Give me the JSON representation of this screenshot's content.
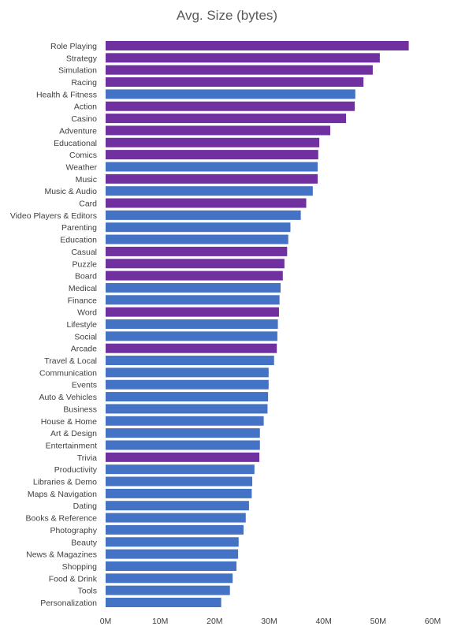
{
  "chart_data": {
    "type": "bar",
    "orientation": "horizontal",
    "title": "Avg. Size (bytes)",
    "xlabel": "",
    "ylabel": "",
    "xlim": [
      0,
      60000000
    ],
    "x_ticks": [
      "0M",
      "10M",
      "20M",
      "30M",
      "40M",
      "50M",
      "60M"
    ],
    "grid": false,
    "legend": "none",
    "colors": {
      "games": "#7030a0",
      "apps": "#4472c4"
    },
    "bars": [
      {
        "category": "Role Playing",
        "value": 55600000,
        "group": "games"
      },
      {
        "category": "Strategy",
        "value": 50300000,
        "group": "games"
      },
      {
        "category": "Simulation",
        "value": 49000000,
        "group": "games"
      },
      {
        "category": "Racing",
        "value": 47300000,
        "group": "games"
      },
      {
        "category": "Health & Fitness",
        "value": 45800000,
        "group": "apps"
      },
      {
        "category": "Action",
        "value": 45700000,
        "group": "games"
      },
      {
        "category": "Casino",
        "value": 44100000,
        "group": "games"
      },
      {
        "category": "Adventure",
        "value": 41200000,
        "group": "games"
      },
      {
        "category": "Educational",
        "value": 39200000,
        "group": "games"
      },
      {
        "category": "Comics",
        "value": 39000000,
        "group": "games"
      },
      {
        "category": "Weather",
        "value": 38900000,
        "group": "apps"
      },
      {
        "category": "Music",
        "value": 38900000,
        "group": "games"
      },
      {
        "category": "Music & Audio",
        "value": 38000000,
        "group": "apps"
      },
      {
        "category": "Card",
        "value": 36800000,
        "group": "games"
      },
      {
        "category": "Video Players & Editors",
        "value": 35800000,
        "group": "apps"
      },
      {
        "category": "Parenting",
        "value": 33900000,
        "group": "apps"
      },
      {
        "category": "Education",
        "value": 33500000,
        "group": "apps"
      },
      {
        "category": "Casual",
        "value": 33300000,
        "group": "games"
      },
      {
        "category": "Puzzle",
        "value": 32800000,
        "group": "games"
      },
      {
        "category": "Board",
        "value": 32500000,
        "group": "games"
      },
      {
        "category": "Medical",
        "value": 32100000,
        "group": "apps"
      },
      {
        "category": "Finance",
        "value": 31900000,
        "group": "apps"
      },
      {
        "category": "Word",
        "value": 31800000,
        "group": "games"
      },
      {
        "category": "Lifestyle",
        "value": 31600000,
        "group": "apps"
      },
      {
        "category": "Social",
        "value": 31500000,
        "group": "apps"
      },
      {
        "category": "Arcade",
        "value": 31400000,
        "group": "games"
      },
      {
        "category": "Travel & Local",
        "value": 30900000,
        "group": "apps"
      },
      {
        "category": "Communication",
        "value": 29900000,
        "group": "apps"
      },
      {
        "category": "Events",
        "value": 29900000,
        "group": "apps"
      },
      {
        "category": "Auto & Vehicles",
        "value": 29800000,
        "group": "apps"
      },
      {
        "category": "Business",
        "value": 29700000,
        "group": "apps"
      },
      {
        "category": "House & Home",
        "value": 29000000,
        "group": "apps"
      },
      {
        "category": "Art & Design",
        "value": 28300000,
        "group": "apps"
      },
      {
        "category": "Entertainment",
        "value": 28300000,
        "group": "apps"
      },
      {
        "category": "Trivia",
        "value": 28200000,
        "group": "games"
      },
      {
        "category": "Productivity",
        "value": 27300000,
        "group": "apps"
      },
      {
        "category": "Libraries & Demo",
        "value": 26900000,
        "group": "apps"
      },
      {
        "category": "Maps & Navigation",
        "value": 26800000,
        "group": "apps"
      },
      {
        "category": "Dating",
        "value": 26300000,
        "group": "apps"
      },
      {
        "category": "Books & Reference",
        "value": 25700000,
        "group": "apps"
      },
      {
        "category": "Photography",
        "value": 25300000,
        "group": "apps"
      },
      {
        "category": "Beauty",
        "value": 24400000,
        "group": "apps"
      },
      {
        "category": "News & Magazines",
        "value": 24300000,
        "group": "apps"
      },
      {
        "category": "Shopping",
        "value": 24000000,
        "group": "apps"
      },
      {
        "category": "Food & Drink",
        "value": 23300000,
        "group": "apps"
      },
      {
        "category": "Tools",
        "value": 22800000,
        "group": "apps"
      },
      {
        "category": "Personalization",
        "value": 21200000,
        "group": "apps"
      }
    ]
  }
}
